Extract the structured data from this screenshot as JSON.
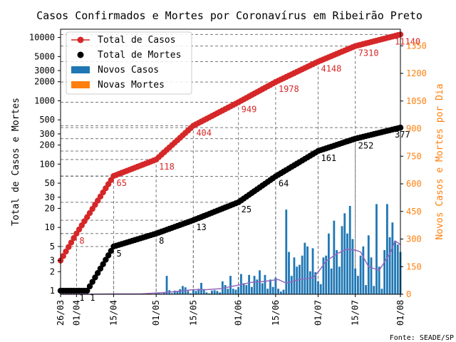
{
  "chart_data": {
    "type": "line",
    "title": "Casos Confirmados e Mortes por Coronavírus em Ribeirão Preto",
    "ylabel_left": "Total de Casos e Mortes",
    "ylabel_right": "Novos Casos e Mortes por Dia",
    "source": "Fonte: SEADE/SP",
    "day_origin": "26/03",
    "x_range_days": [
      0,
      128
    ],
    "x_ticks": [
      {
        "day": 0,
        "label": "26/03"
      },
      {
        "day": 6,
        "label": "01/04"
      },
      {
        "day": 20,
        "label": "15/04"
      },
      {
        "day": 36,
        "label": "01/05"
      },
      {
        "day": 50,
        "label": "15/05"
      },
      {
        "day": 67,
        "label": "01/06"
      },
      {
        "day": 81,
        "label": "15/06"
      },
      {
        "day": 97,
        "label": "01/07"
      },
      {
        "day": 111,
        "label": "15/07"
      },
      {
        "day": 128,
        "label": "01/08"
      }
    ],
    "y_left": {
      "scale": "log",
      "range": [
        0.88,
        13500
      ],
      "ticks": [
        1,
        2,
        3,
        5,
        10,
        20,
        30,
        50,
        100,
        200,
        300,
        500,
        1000,
        2000,
        3000,
        5000,
        10000
      ]
    },
    "y_right": {
      "scale": "linear",
      "range": [
        0,
        1440
      ],
      "ticks": [
        0,
        150,
        300,
        450,
        600,
        750,
        900,
        1050,
        1200,
        1350
      ]
    },
    "legend": {
      "placement": "top-left",
      "items": [
        "Total de Casos",
        "Total de Mortes",
        "Novos Casos",
        "Novas Mortes"
      ]
    },
    "series": [
      {
        "name": "Total de Casos",
        "color": "#d62728",
        "days": [
          0,
          6,
          20,
          36,
          50,
          67,
          81,
          97,
          111,
          128
        ],
        "values": [
          3,
          8,
          65,
          118,
          404,
          949,
          1978,
          4148,
          7310,
          11140
        ]
      },
      {
        "name": "Total de Mortes",
        "color": "#000000",
        "days": [
          0,
          6,
          10,
          20,
          36,
          50,
          67,
          81,
          97,
          111,
          128
        ],
        "values": [
          1,
          1,
          1,
          5,
          8,
          13,
          25,
          64,
          161,
          252,
          377
        ]
      },
      {
        "name": "Novos Casos",
        "type": "bar",
        "color": "#1f77b4",
        "days": [
          36,
          37,
          38,
          39,
          40,
          41,
          42,
          43,
          44,
          45,
          46,
          47,
          48,
          49,
          50,
          51,
          52,
          53,
          54,
          55,
          56,
          57,
          58,
          59,
          60,
          61,
          62,
          63,
          64,
          65,
          66,
          67,
          68,
          69,
          70,
          71,
          72,
          73,
          74,
          75,
          76,
          77,
          78,
          79,
          80,
          81,
          82,
          83,
          84,
          85,
          86,
          87,
          88,
          89,
          90,
          91,
          92,
          93,
          94,
          95,
          96,
          97,
          98,
          99,
          100,
          101,
          102,
          103,
          104,
          105,
          106,
          107,
          108,
          109,
          110,
          111,
          112,
          113,
          114,
          115,
          116,
          117,
          118,
          119,
          120,
          121,
          122,
          123,
          124,
          125,
          126,
          127,
          128
        ],
        "values": [
          6,
          10,
          4,
          8,
          100,
          22,
          6,
          20,
          15,
          28,
          45,
          38,
          18,
          5,
          25,
          18,
          30,
          62,
          25,
          10,
          5,
          20,
          22,
          18,
          10,
          70,
          50,
          30,
          100,
          30,
          25,
          40,
          110,
          60,
          50,
          105,
          40,
          100,
          80,
          130,
          60,
          105,
          30,
          80,
          40,
          90,
          30,
          15,
          25,
          460,
          230,
          100,
          200,
          150,
          160,
          210,
          280,
          260,
          125,
          250,
          120,
          70,
          55,
          200,
          210,
          330,
          140,
          400,
          240,
          150,
          370,
          440,
          330,
          480,
          300,
          140,
          100,
          210,
          260,
          50,
          320,
          200,
          45,
          490,
          150,
          30,
          240,
          490,
          310,
          390,
          290,
          270,
          230
        ]
      },
      {
        "name": "Novas Mortes",
        "type": "bar",
        "color": "#ff7f0e",
        "days": [],
        "values": []
      },
      {
        "name": "Média Móvel Novos Casos",
        "color": "#9467bd",
        "days": [
          0,
          10,
          20,
          30,
          40,
          50,
          55,
          60,
          67,
          72,
          77,
          82,
          85,
          90,
          95,
          97,
          100,
          104,
          108,
          111,
          113,
          116,
          120,
          124,
          126,
          128
        ],
        "values": [
          0,
          0,
          2,
          2,
          10,
          25,
          25,
          30,
          50,
          65,
          70,
          80,
          60,
          80,
          90,
          120,
          180,
          220,
          245,
          240,
          230,
          150,
          130,
          220,
          290,
          270
        ]
      }
    ],
    "annotations": [
      {
        "series": "Total de Casos",
        "day": 6,
        "value": 8,
        "label": "8"
      },
      {
        "series": "Total de Casos",
        "day": 20,
        "value": 65,
        "label": "65"
      },
      {
        "series": "Total de Casos",
        "day": 36,
        "value": 118,
        "label": "118"
      },
      {
        "series": "Total de Casos",
        "day": 50,
        "value": 404,
        "label": "404"
      },
      {
        "series": "Total de Casos",
        "day": 67,
        "value": 949,
        "label": "949"
      },
      {
        "series": "Total de Casos",
        "day": 81,
        "value": 1978,
        "label": "1978"
      },
      {
        "series": "Total de Casos",
        "day": 97,
        "value": 4148,
        "label": "4148"
      },
      {
        "series": "Total de Casos",
        "day": 111,
        "value": 7310,
        "label": "7310"
      },
      {
        "series": "Total de Casos",
        "day": 128,
        "value": 11140,
        "label": "11140"
      },
      {
        "series": "Total de Mortes",
        "day": 6,
        "value": 1,
        "label": "1"
      },
      {
        "series": "Total de Mortes",
        "day": 10,
        "value": 1,
        "label": "1"
      },
      {
        "series": "Total de Mortes",
        "day": 20,
        "value": 5,
        "label": "5"
      },
      {
        "series": "Total de Mortes",
        "day": 36,
        "value": 8,
        "label": "8"
      },
      {
        "series": "Total de Mortes",
        "day": 50,
        "value": 13,
        "label": "13"
      },
      {
        "series": "Total de Mortes",
        "day": 67,
        "value": 25,
        "label": "25"
      },
      {
        "series": "Total de Mortes",
        "day": 81,
        "value": 64,
        "label": "64"
      },
      {
        "series": "Total de Mortes",
        "day": 97,
        "value": 161,
        "label": "161"
      },
      {
        "series": "Total de Mortes",
        "day": 111,
        "value": 252,
        "label": "252"
      },
      {
        "series": "Total de Mortes",
        "day": 128,
        "value": 377,
        "label": "377"
      }
    ]
  }
}
